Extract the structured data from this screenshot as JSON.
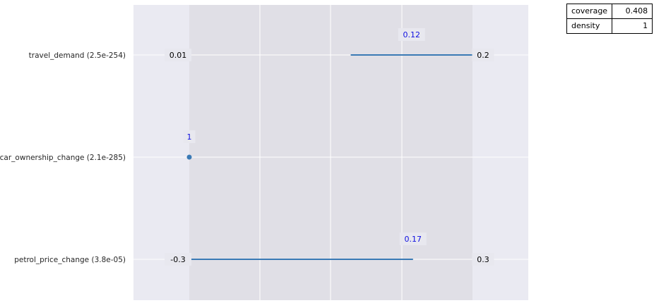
{
  "chart_data": {
    "type": "box-limits",
    "title": "",
    "xlabel": "",
    "ylabel": "",
    "grid": true,
    "colors": {
      "plot_background": "#eaeaf2",
      "box_shade": "#e0dfe6",
      "gridline": "#ffffff",
      "segment": "#3a7ab5",
      "limit_label_text": "#000000",
      "limit_label_bg": "#e8e8ef",
      "restricted_label_text": "#1010e0"
    },
    "rows": [
      {
        "name": "travel_demand (2.5e-254)",
        "min_label": "0.01",
        "max_label": "0.2",
        "restricted_label": "0.12",
        "marker": "segment",
        "segment_start": 0.57,
        "segment_end": 1.0
      },
      {
        "name": "car_ownership_change (2.1e-285)",
        "min_label": "",
        "max_label": "",
        "restricted_label": "1",
        "marker": "point",
        "segment_start": 0.0,
        "segment_end": 0.0
      },
      {
        "name": "petrol_price_change (3.8e-05)",
        "min_label": "-0.3",
        "max_label": "0.3",
        "restricted_label": "0.17",
        "marker": "segment",
        "segment_start": 0.0,
        "segment_end": 0.79
      }
    ],
    "stats": [
      {
        "label": "coverage",
        "value": "0.408"
      },
      {
        "label": "density",
        "value": "1"
      }
    ]
  }
}
